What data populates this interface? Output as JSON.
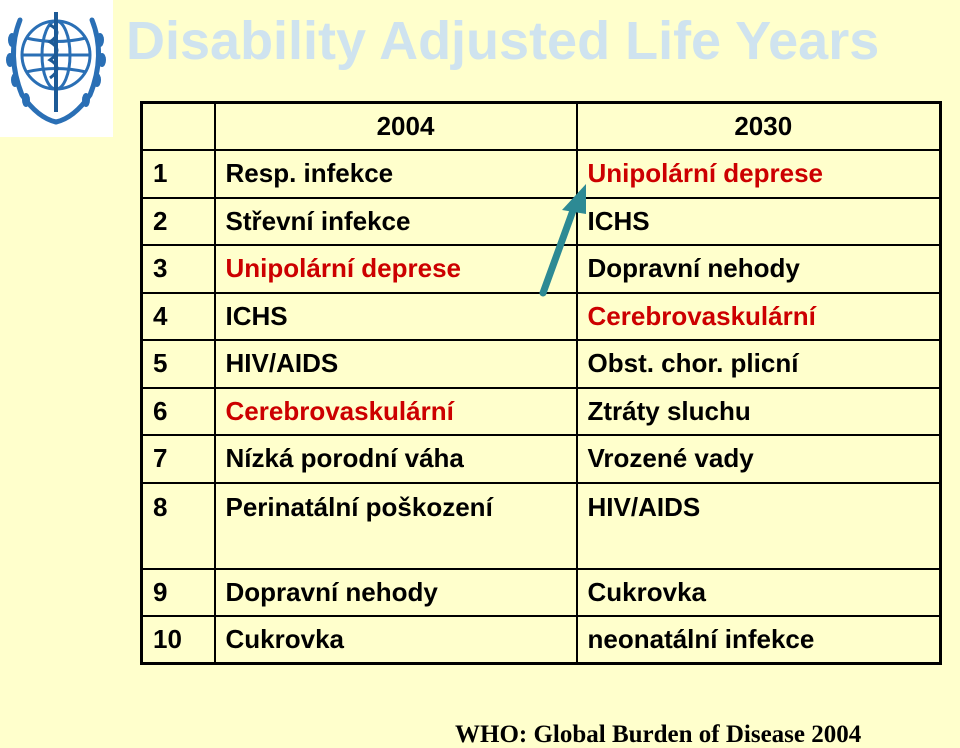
{
  "title": "Disability Adjusted Life Years",
  "source": "WHO: Global Burden of Disease 2004",
  "logo": {
    "icon": "who-emblem-icon",
    "color": "#2a6fb5"
  },
  "colors": {
    "highlight": "#cc0000",
    "text": "#000000",
    "title": "#cfe3ef",
    "background": "#ffffcc",
    "arrow": "#2d8a94"
  },
  "table": {
    "headers": [
      "",
      "2004",
      "2030"
    ],
    "rows": [
      {
        "rank": "1",
        "y2004": "Resp. infekce",
        "y2004_highlight": false,
        "y2030": "Unipolární deprese",
        "y2030_highlight": true
      },
      {
        "rank": "2",
        "y2004": "Střevní infekce",
        "y2004_highlight": false,
        "y2030": "ICHS",
        "y2030_highlight": false
      },
      {
        "rank": "3",
        "y2004": "Unipolární deprese",
        "y2004_highlight": true,
        "y2030": "Dopravní nehody",
        "y2030_highlight": false
      },
      {
        "rank": "4",
        "y2004": "ICHS",
        "y2004_highlight": false,
        "y2030": "Cerebrovaskulární",
        "y2030_highlight": true
      },
      {
        "rank": "5",
        "y2004": "HIV/AIDS",
        "y2004_highlight": false,
        "y2030": "Obst. chor. plicní",
        "y2030_highlight": false
      },
      {
        "rank": "6",
        "y2004": "Cerebrovaskulární",
        "y2004_highlight": true,
        "y2030": "Ztráty sluchu",
        "y2030_highlight": false
      },
      {
        "rank": "7",
        "y2004": "Nízká porodní váha",
        "y2004_highlight": false,
        "y2030": "Vrozené vady",
        "y2030_highlight": false
      },
      {
        "rank": "8",
        "y2004": "Perinatální poškození",
        "y2004_highlight": false,
        "y2030": "HIV/AIDS",
        "y2030_highlight": false
      },
      {
        "rank": "9",
        "y2004": "Dopravní nehody",
        "y2004_highlight": false,
        "y2030": "Cukrovka",
        "y2030_highlight": false
      },
      {
        "rank": "10",
        "y2004": "Cukrovka",
        "y2004_highlight": false,
        "y2030": "neonatální infekce",
        "y2030_highlight": false
      }
    ]
  }
}
